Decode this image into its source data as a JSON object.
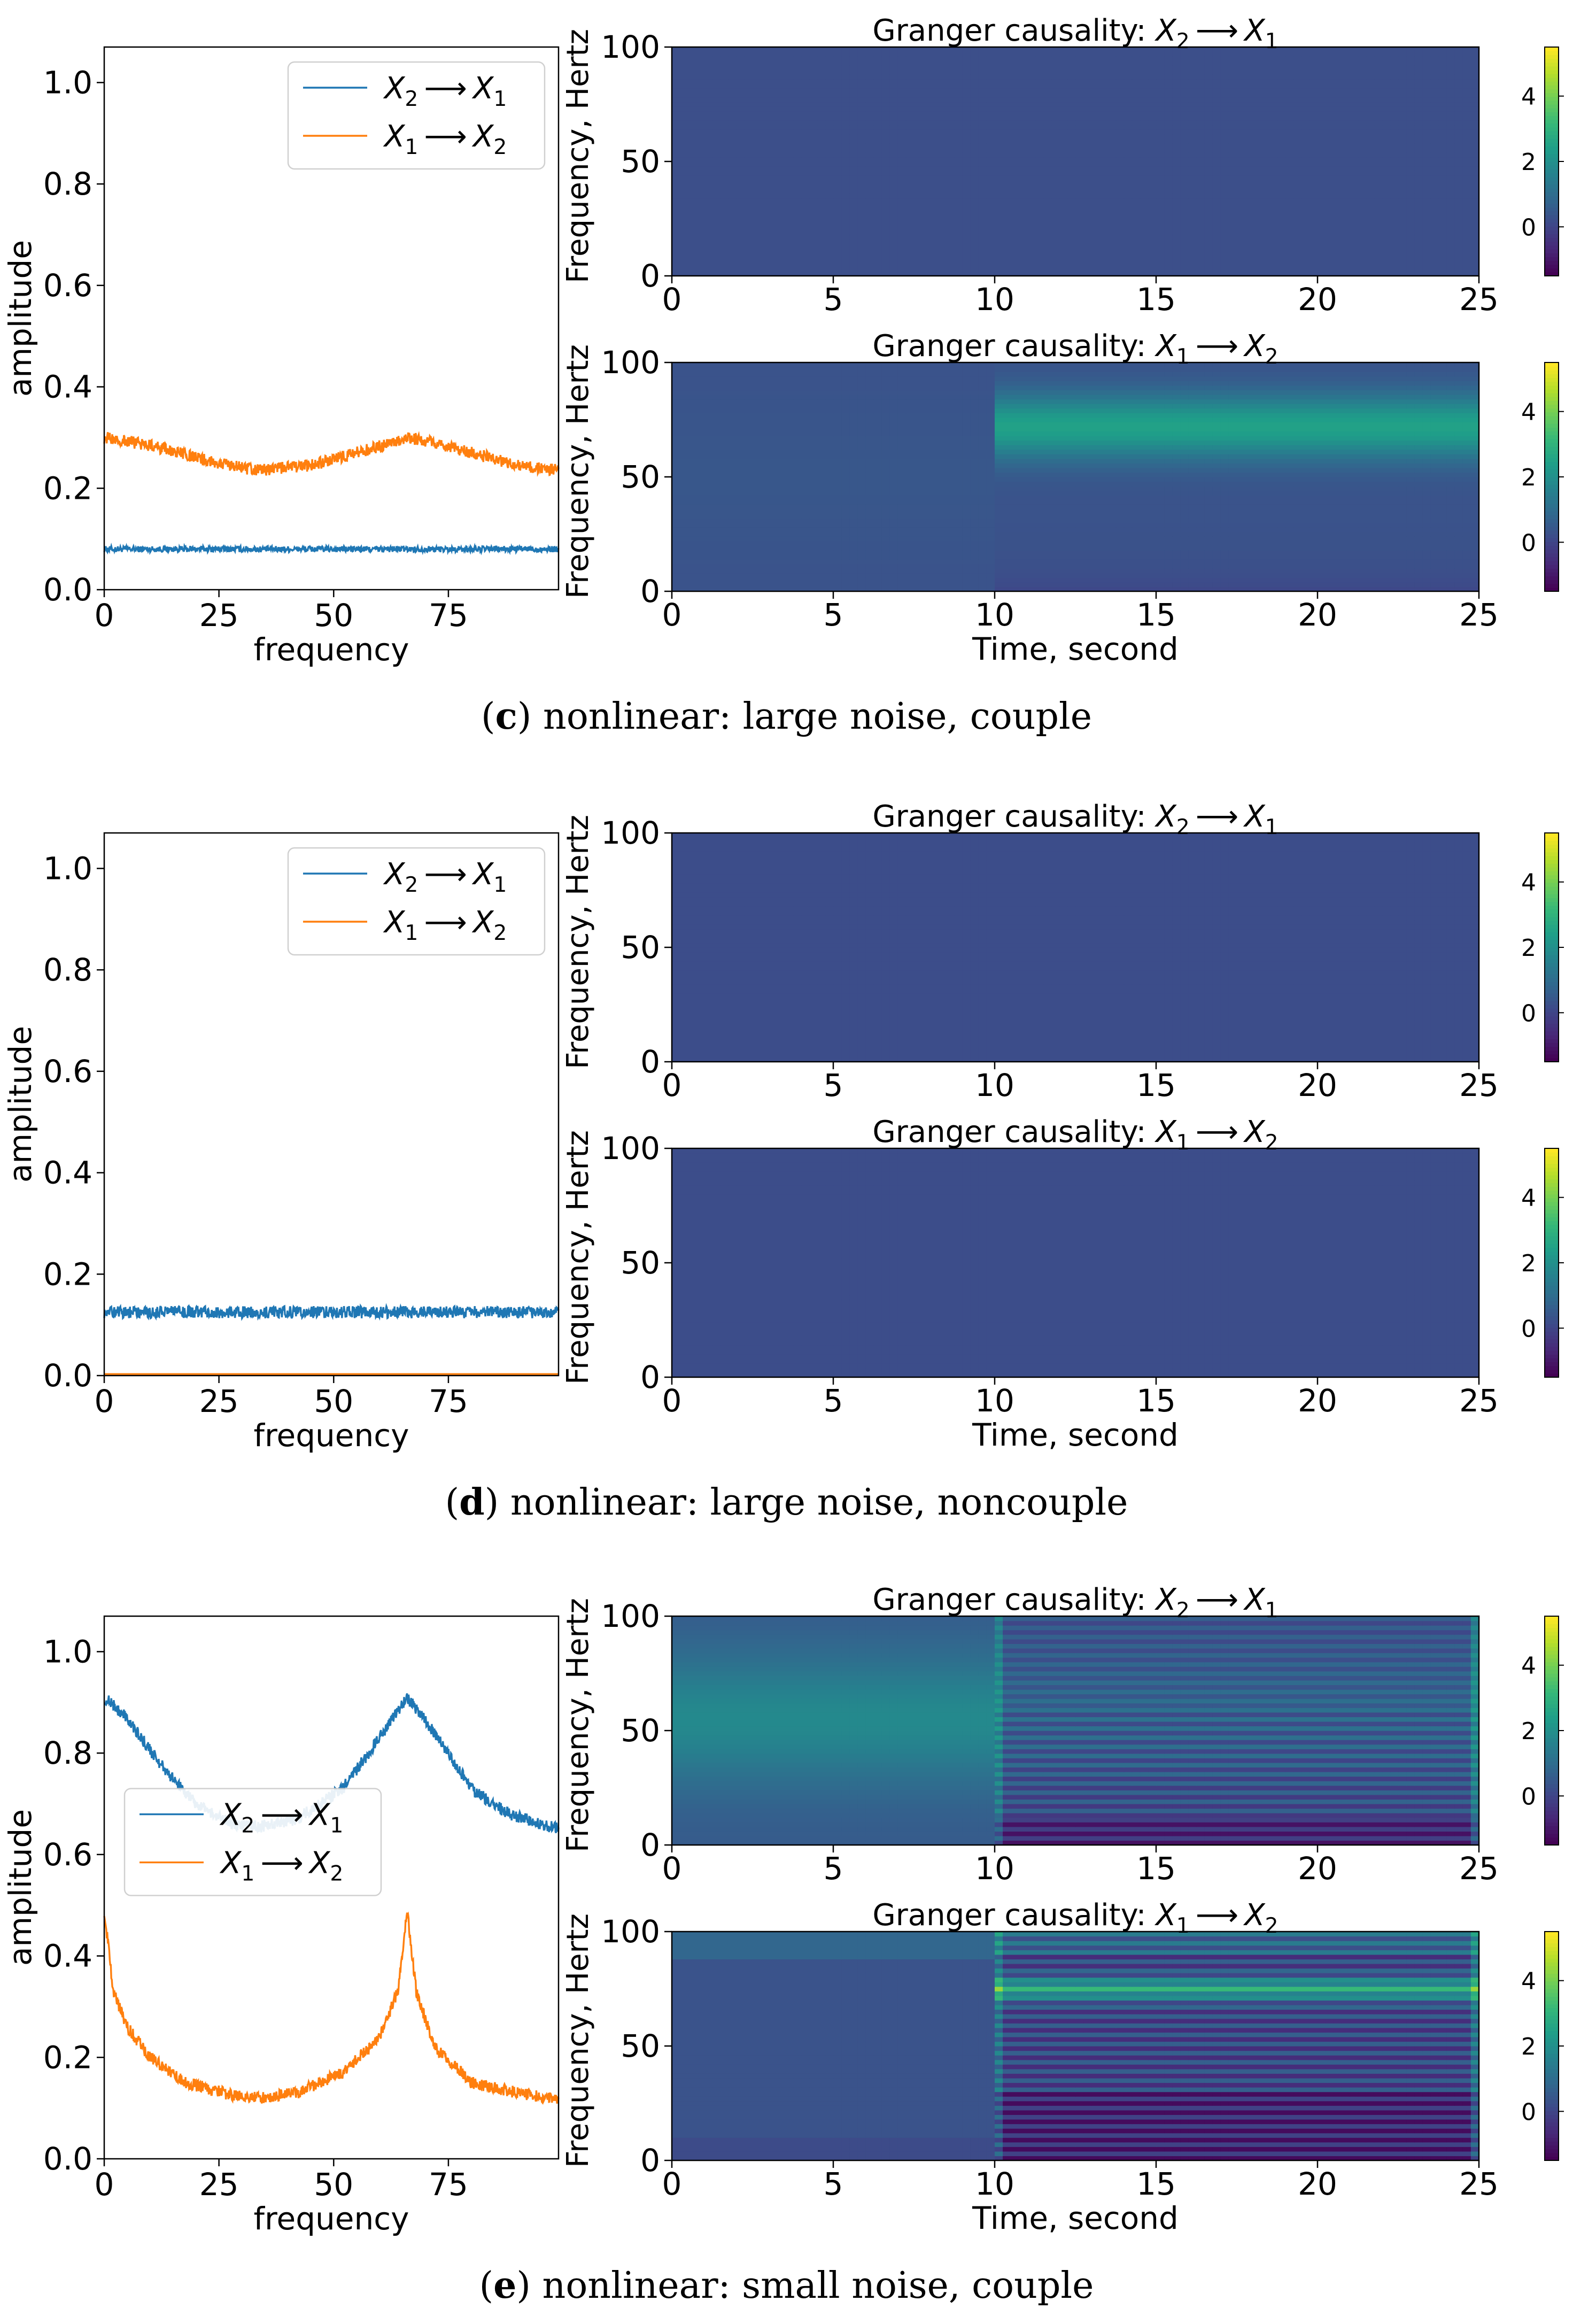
{
  "figure": {
    "panels": [
      {
        "id": "c",
        "caption_letter": "c",
        "caption_text": "nonlinear: large noise, couple",
        "legend_position": "top-right"
      },
      {
        "id": "d",
        "caption_letter": "d",
        "caption_text": "nonlinear: large noise, noncouple",
        "legend_position": "top-right"
      },
      {
        "id": "e",
        "caption_letter": "e",
        "caption_text": "nonlinear: small noise, couple",
        "legend_position": "center-left"
      }
    ]
  },
  "colors": {
    "blue": "#1f77b4",
    "orange": "#ff7f0e",
    "viridis_low": "#440154",
    "viridis_mid": "#21918c",
    "viridis_high": "#fde725",
    "base_map": "#3b528b"
  },
  "chart_data": [
    {
      "panel": "c",
      "type": "line",
      "xlabel": "frequency",
      "ylabel": "amplitude",
      "xlim": [
        0,
        99
      ],
      "ylim": [
        0,
        1.07
      ],
      "x_ticks": [
        "0",
        "25",
        "50",
        "75"
      ],
      "y_ticks": [
        "0.0",
        "0.2",
        "0.4",
        "0.6",
        "0.8",
        "1.0"
      ],
      "series": [
        {
          "name": "X2→X1",
          "color": "#1f77b4",
          "x": [
            0,
            25,
            50,
            75,
            99
          ],
          "values": [
            0.08,
            0.08,
            0.08,
            0.08,
            0.08
          ]
        },
        {
          "name": "X1→X2",
          "color": "#ff7f0e",
          "x": [
            0,
            10,
            20,
            33,
            45,
            55,
            67,
            80,
            90,
            99
          ],
          "values": [
            0.3,
            0.285,
            0.26,
            0.235,
            0.245,
            0.27,
            0.3,
            0.27,
            0.245,
            0.235
          ]
        }
      ]
    },
    {
      "panel": "c",
      "type": "heatmap",
      "title": "Granger causality: X2→X1",
      "ylabel": "Frequency, Hertz",
      "xlim": [
        0,
        25
      ],
      "ylim": [
        0,
        100
      ],
      "x_ticks": [
        "0",
        "5",
        "10",
        "15",
        "20",
        "25"
      ],
      "y_ticks": [
        "0",
        "50",
        "100"
      ],
      "colorbar_ticks": [
        "0",
        "2",
        "4"
      ],
      "colorbar_range": [
        -1.5,
        5.5
      ],
      "pattern": "uniform",
      "base_value": 0.2
    },
    {
      "panel": "c",
      "type": "heatmap",
      "title": "Granger causality: X1→X2",
      "xlabel": "Time, second",
      "ylabel": "Frequency, Hertz",
      "xlim": [
        0,
        25
      ],
      "ylim": [
        0,
        100
      ],
      "x_ticks": [
        "0",
        "5",
        "10",
        "15",
        "20",
        "25"
      ],
      "y_ticks": [
        "0",
        "50",
        "100"
      ],
      "colorbar_ticks": [
        "0",
        "2",
        "4"
      ],
      "colorbar_range": [
        -1.5,
        5.5
      ],
      "pattern": "band_after_10s",
      "base_value": 0.3,
      "band_center_hz": 72,
      "band_peak_value": 2.2
    },
    {
      "panel": "d",
      "type": "line",
      "xlabel": "frequency",
      "ylabel": "amplitude",
      "xlim": [
        0,
        99
      ],
      "ylim": [
        0,
        1.07
      ],
      "x_ticks": [
        "0",
        "25",
        "50",
        "75"
      ],
      "y_ticks": [
        "0.0",
        "0.2",
        "0.4",
        "0.6",
        "0.8",
        "1.0"
      ],
      "series": [
        {
          "name": "X2→X1",
          "color": "#1f77b4",
          "x": [
            0,
            25,
            50,
            75,
            99
          ],
          "values": [
            0.125,
            0.125,
            0.125,
            0.125,
            0.125
          ]
        },
        {
          "name": "X1→X2",
          "color": "#ff7f0e",
          "x": [
            0,
            25,
            50,
            75,
            99
          ],
          "values": [
            0.003,
            0.003,
            0.003,
            0.003,
            0.003
          ]
        }
      ]
    },
    {
      "panel": "d",
      "type": "heatmap",
      "title": "Granger causality: X2→X1",
      "ylabel": "Frequency, Hertz",
      "xlim": [
        0,
        25
      ],
      "ylim": [
        0,
        100
      ],
      "x_ticks": [
        "0",
        "5",
        "10",
        "15",
        "20",
        "25"
      ],
      "y_ticks": [
        "0",
        "50",
        "100"
      ],
      "colorbar_ticks": [
        "0",
        "2",
        "4"
      ],
      "colorbar_range": [
        -1.5,
        5.5
      ],
      "pattern": "uniform",
      "base_value": 0.15
    },
    {
      "panel": "d",
      "type": "heatmap",
      "title": "Granger causality: X1→X2",
      "xlabel": "Time, second",
      "ylabel": "Frequency, Hertz",
      "xlim": [
        0,
        25
      ],
      "ylim": [
        0,
        100
      ],
      "x_ticks": [
        "0",
        "5",
        "10",
        "15",
        "20",
        "25"
      ],
      "y_ticks": [
        "0",
        "50",
        "100"
      ],
      "colorbar_ticks": [
        "0",
        "2",
        "4"
      ],
      "colorbar_range": [
        -1.5,
        5.5
      ],
      "pattern": "uniform",
      "base_value": 0.15
    },
    {
      "panel": "e",
      "type": "line",
      "xlabel": "frequency",
      "ylabel": "amplitude",
      "xlim": [
        0,
        99
      ],
      "ylim": [
        0,
        1.07
      ],
      "x_ticks": [
        "0",
        "25",
        "50",
        "75"
      ],
      "y_ticks": [
        "0.0",
        "0.2",
        "0.4",
        "0.6",
        "0.8",
        "1.0"
      ],
      "series": [
        {
          "name": "X2→X1",
          "color": "#1f77b4",
          "x": [
            0,
            5,
            12,
            20,
            28,
            34,
            42,
            52,
            60,
            66,
            72,
            80,
            88,
            99
          ],
          "values": [
            0.91,
            0.87,
            0.78,
            0.7,
            0.66,
            0.655,
            0.67,
            0.73,
            0.83,
            0.91,
            0.84,
            0.73,
            0.68,
            0.65
          ]
        },
        {
          "name": "X1→X2",
          "color": "#ff7f0e",
          "x": [
            0,
            2,
            5,
            10,
            18,
            28,
            34,
            42,
            52,
            60,
            64,
            66,
            68,
            72,
            80,
            90,
            99
          ],
          "values": [
            0.49,
            0.33,
            0.26,
            0.2,
            0.15,
            0.125,
            0.12,
            0.13,
            0.17,
            0.24,
            0.33,
            0.49,
            0.33,
            0.22,
            0.15,
            0.13,
            0.115
          ]
        }
      ]
    },
    {
      "panel": "e",
      "type": "heatmap",
      "title": "Granger causality: X2→X1",
      "ylabel": "Frequency, Hertz",
      "xlim": [
        0,
        25
      ],
      "ylim": [
        0,
        100
      ],
      "x_ticks": [
        "0",
        "5",
        "10",
        "15",
        "20",
        "25"
      ],
      "y_ticks": [
        "0",
        "50",
        "100"
      ],
      "colorbar_ticks": [
        "0",
        "2",
        "4"
      ],
      "colorbar_range": [
        -1.5,
        5.5
      ],
      "pattern": "striped_after_10s",
      "base_value": 0.5,
      "center_hz": 55,
      "center_value": 1.3
    },
    {
      "panel": "e",
      "type": "heatmap",
      "title": "Granger causality: X1→X2",
      "xlabel": "Time, second",
      "ylabel": "Frequency, Hertz",
      "xlim": [
        0,
        25
      ],
      "ylim": [
        0,
        100
      ],
      "x_ticks": [
        "0",
        "5",
        "10",
        "15",
        "20",
        "25"
      ],
      "y_ticks": [
        "0",
        "50",
        "100"
      ],
      "colorbar_ticks": [
        "0",
        "2",
        "4"
      ],
      "colorbar_range": [
        -1.5,
        5.5
      ],
      "pattern": "striped_band_after_10s",
      "base_value": 0.3,
      "band_center_hz": 75,
      "band_peak_value": 2.6
    }
  ]
}
